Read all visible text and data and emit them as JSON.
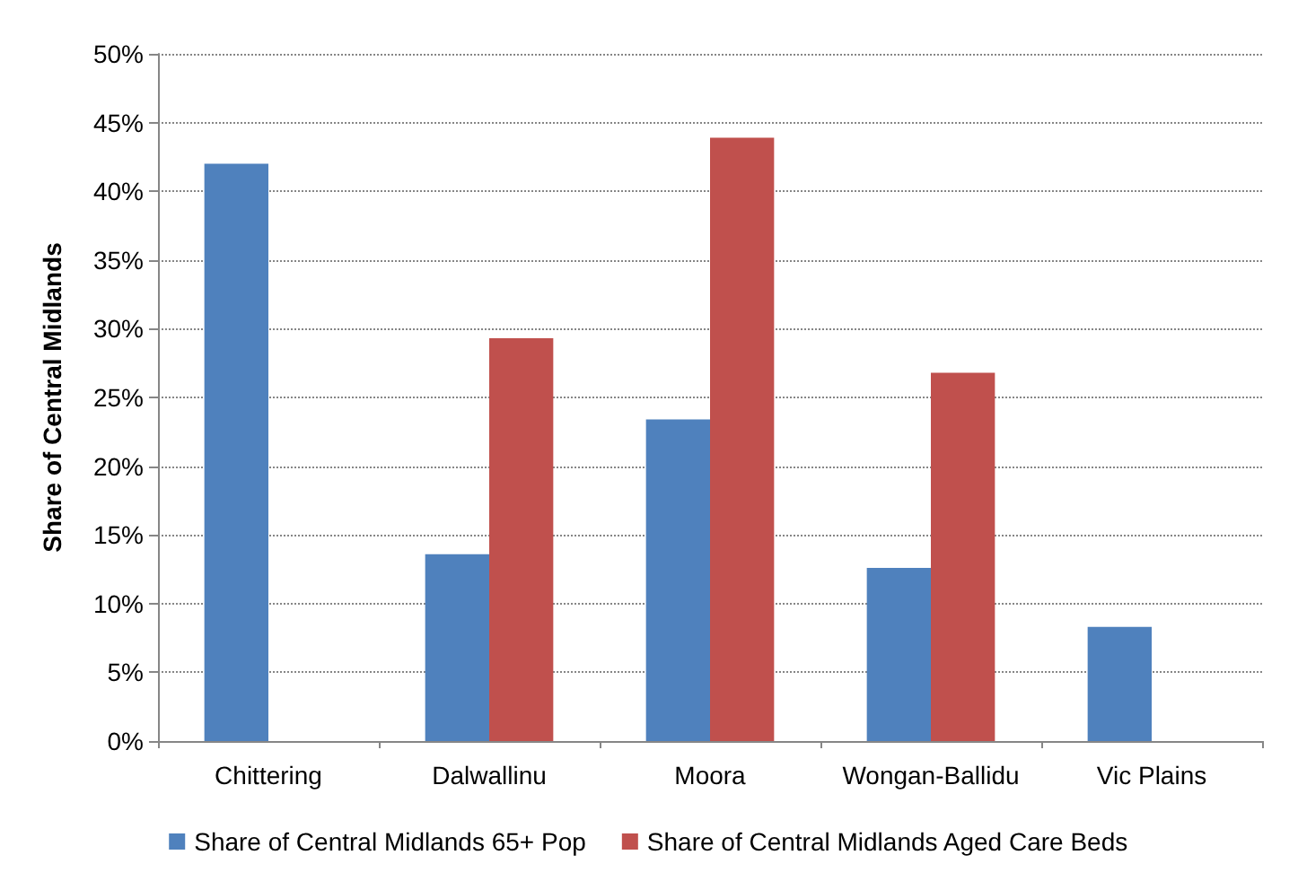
{
  "chart_data": {
    "type": "bar",
    "ylabel": "Share of Central Midlands",
    "categories": [
      "Chittering",
      "Dalwallinu",
      "Moora",
      "Wongan-Ballidu",
      "Vic Plains"
    ],
    "series": [
      {
        "name": "Share of Central Midlands 65+ Pop",
        "color": "#4f81bd",
        "values": [
          42.0,
          13.6,
          23.4,
          12.6,
          8.3
        ]
      },
      {
        "name": "Share of Central Midlands Aged Care Beds",
        "color": "#c0504d",
        "values": [
          null,
          29.3,
          43.9,
          26.8,
          null
        ]
      }
    ],
    "ylim": [
      0,
      50
    ],
    "yticks": [
      {
        "value": 0,
        "label": "0%"
      },
      {
        "value": 5,
        "label": "5%"
      },
      {
        "value": 10,
        "label": "10%"
      },
      {
        "value": 15,
        "label": "15%"
      },
      {
        "value": 20,
        "label": "20%"
      },
      {
        "value": 25,
        "label": "25%"
      },
      {
        "value": 30,
        "label": "30%"
      },
      {
        "value": 35,
        "label": "35%"
      },
      {
        "value": 40,
        "label": "40%"
      },
      {
        "value": 45,
        "label": "45%"
      },
      {
        "value": 50,
        "label": "50%"
      }
    ],
    "grid": "y",
    "legend": "bottom"
  }
}
